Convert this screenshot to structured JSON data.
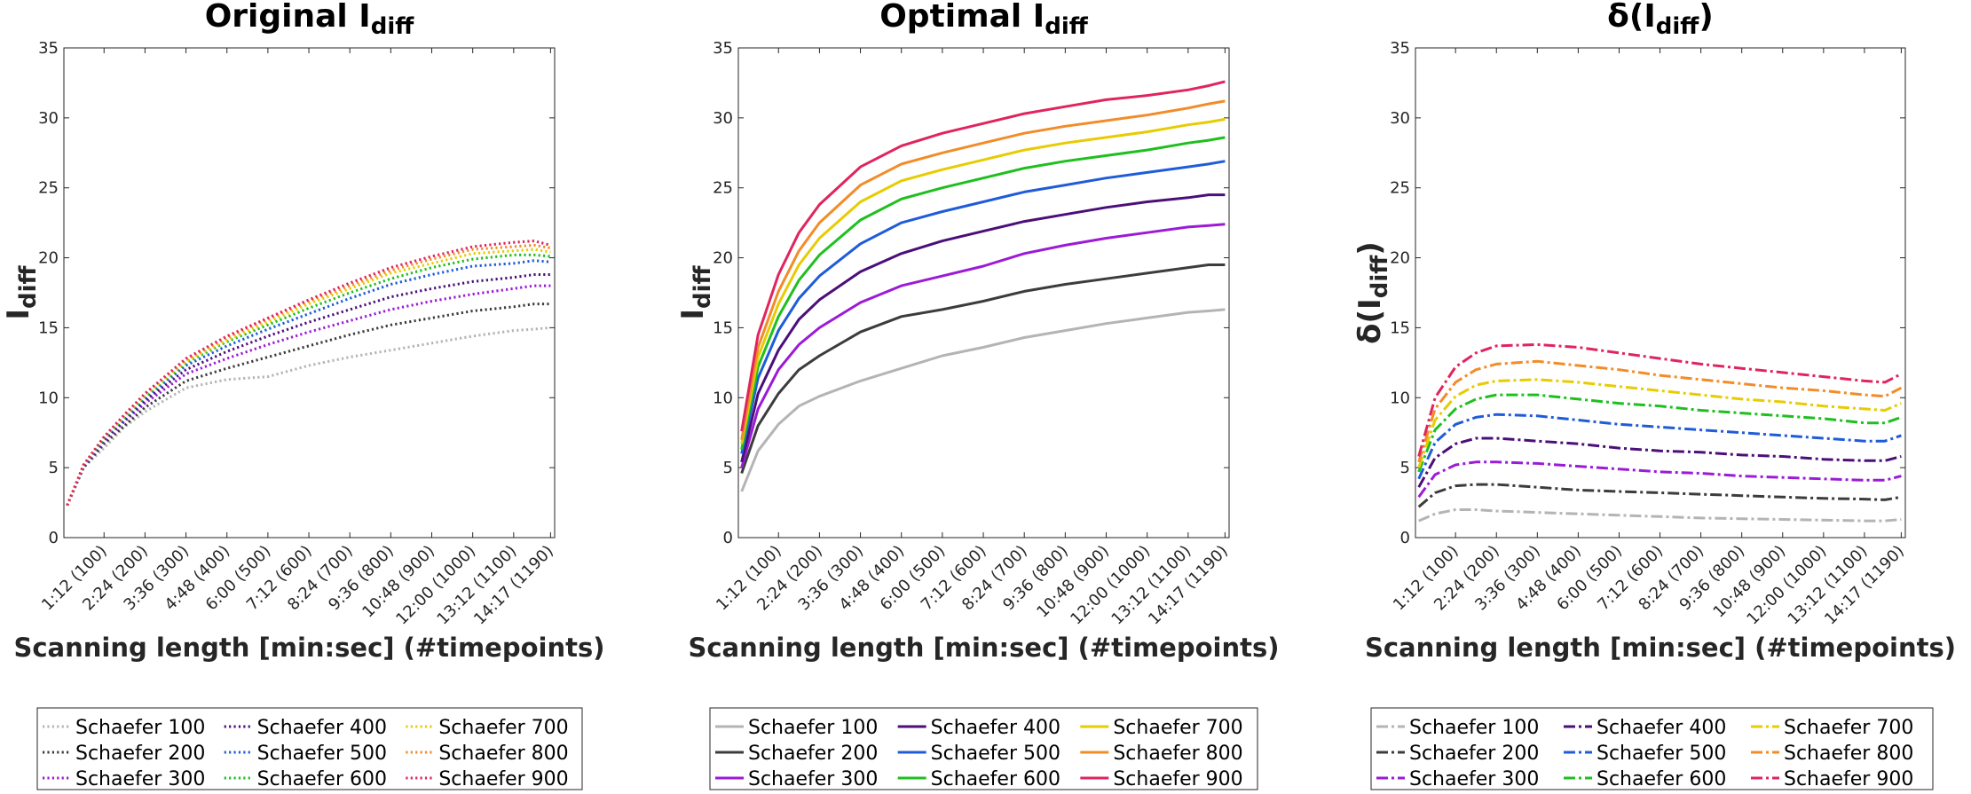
{
  "chart_data": [
    {
      "type": "line",
      "title": "Original I",
      "title_sub": "diff",
      "ylabel": "I",
      "ylabel_sub": "diff",
      "xlabel": "Scanning length [min:sec] (#timepoints)",
      "line_style": "dotted",
      "ylim": [
        0,
        35
      ],
      "yticks": [
        0,
        5,
        10,
        15,
        20,
        25,
        30,
        35
      ],
      "xlim": [
        2,
        1200
      ],
      "xtick_values": [
        100,
        200,
        300,
        400,
        500,
        600,
        700,
        800,
        900,
        1000,
        1100,
        1190
      ],
      "xtick_labels": [
        "1:12 (100)",
        "2:24 (200)",
        "3:36 (300)",
        "4:48 (400)",
        "6:00 (500)",
        "7:12 (600)",
        "8:24 (700)",
        "9:36 (800)",
        "10:48 (900)",
        "12:00 (1000)",
        "13:12 (1100)",
        "14:17 (1190)"
      ],
      "x": [
        10,
        50,
        100,
        150,
        200,
        300,
        400,
        500,
        600,
        700,
        800,
        900,
        1000,
        1100,
        1150,
        1190
      ],
      "series": [
        {
          "name": "Schaefer 100",
          "color": "#b4b4b4",
          "values": [
            2.3,
            5.0,
            6.4,
            7.9,
            9.0,
            10.7,
            11.3,
            11.5,
            12.3,
            12.9,
            13.4,
            13.9,
            14.4,
            14.8,
            14.9,
            15.0
          ]
        },
        {
          "name": "Schaefer 200",
          "color": "#3c3c3c",
          "values": [
            2.3,
            5.0,
            6.7,
            8.0,
            9.3,
            11.2,
            12.1,
            12.9,
            13.7,
            14.5,
            15.2,
            15.7,
            16.2,
            16.5,
            16.7,
            16.7
          ]
        },
        {
          "name": "Schaefer 300",
          "color": "#9b1bd6",
          "values": [
            2.3,
            5.1,
            6.9,
            8.3,
            9.6,
            11.7,
            12.8,
            13.8,
            14.7,
            15.5,
            16.3,
            16.9,
            17.4,
            17.8,
            18.0,
            18.0
          ]
        },
        {
          "name": "Schaefer 400",
          "color": "#4b0f7a",
          "values": [
            2.3,
            5.1,
            7.0,
            8.4,
            9.8,
            12.0,
            13.3,
            14.4,
            15.4,
            16.3,
            17.2,
            17.8,
            18.3,
            18.6,
            18.8,
            18.8
          ]
        },
        {
          "name": "Schaefer 500",
          "color": "#1f5cd9",
          "values": [
            2.3,
            5.1,
            7.1,
            8.5,
            10.0,
            12.3,
            13.7,
            14.9,
            16.0,
            17.1,
            18.1,
            18.8,
            19.4,
            19.6,
            19.8,
            19.7
          ]
        },
        {
          "name": "Schaefer 600",
          "color": "#1fbf1f",
          "values": [
            2.3,
            5.2,
            7.1,
            8.6,
            10.1,
            12.5,
            14.0,
            15.2,
            16.4,
            17.5,
            18.5,
            19.3,
            19.9,
            20.2,
            20.2,
            20.1
          ]
        },
        {
          "name": "Schaefer 700",
          "color": "#e6cc00",
          "values": [
            2.3,
            5.2,
            7.2,
            8.7,
            10.2,
            12.6,
            14.1,
            15.4,
            16.7,
            17.8,
            18.9,
            19.6,
            20.3,
            20.5,
            20.6,
            20.4
          ]
        },
        {
          "name": "Schaefer 800",
          "color": "#f28c28",
          "values": [
            2.3,
            5.2,
            7.2,
            8.7,
            10.3,
            12.7,
            14.3,
            15.6,
            16.9,
            18.0,
            19.1,
            19.9,
            20.6,
            20.8,
            20.9,
            20.7
          ]
        },
        {
          "name": "Schaefer 900",
          "color": "#e0245e",
          "values": [
            2.3,
            5.2,
            7.2,
            8.8,
            10.3,
            12.8,
            14.4,
            15.7,
            17.0,
            18.2,
            19.3,
            20.1,
            20.8,
            21.1,
            21.2,
            20.9
          ]
        }
      ]
    },
    {
      "type": "line",
      "title": "Optimal I",
      "title_sub": "diff",
      "ylabel": "I",
      "ylabel_sub": "diff",
      "xlabel": "Scanning length [min:sec] (#timepoints)",
      "line_style": "solid",
      "ylim": [
        0,
        35
      ],
      "yticks": [
        0,
        5,
        10,
        15,
        20,
        25,
        30,
        35
      ],
      "xlim": [
        2,
        1200
      ],
      "xtick_values": [
        100,
        200,
        300,
        400,
        500,
        600,
        700,
        800,
        900,
        1000,
        1100,
        1190
      ],
      "xtick_labels": [
        "1:12 (100)",
        "2:24 (200)",
        "3:36 (300)",
        "4:48 (400)",
        "6:00 (500)",
        "7:12 (600)",
        "8:24 (700)",
        "9:36 (800)",
        "10:48 (900)",
        "12:00 (1000)",
        "13:12 (1100)",
        "14:17 (1190)"
      ],
      "x": [
        10,
        50,
        100,
        150,
        200,
        300,
        400,
        500,
        600,
        700,
        800,
        900,
        1000,
        1100,
        1150,
        1190
      ],
      "series": [
        {
          "name": "Schaefer 100",
          "color": "#b4b4b4",
          "values": [
            3.3,
            6.2,
            8.1,
            9.4,
            10.1,
            11.2,
            12.1,
            13.0,
            13.6,
            14.3,
            14.8,
            15.3,
            15.7,
            16.1,
            16.2,
            16.3
          ]
        },
        {
          "name": "Schaefer 200",
          "color": "#3c3c3c",
          "values": [
            4.6,
            8.0,
            10.3,
            12.0,
            13.0,
            14.7,
            15.8,
            16.3,
            16.9,
            17.6,
            18.1,
            18.5,
            18.9,
            19.3,
            19.5,
            19.5
          ]
        },
        {
          "name": "Schaefer 300",
          "color": "#9b1bd6",
          "values": [
            5.0,
            9.2,
            12.0,
            13.8,
            15.0,
            16.8,
            18.0,
            18.7,
            19.4,
            20.3,
            20.9,
            21.4,
            21.8,
            22.2,
            22.3,
            22.4
          ]
        },
        {
          "name": "Schaefer 400",
          "color": "#4b0f7a",
          "values": [
            5.4,
            10.3,
            13.4,
            15.6,
            17.0,
            19.0,
            20.3,
            21.2,
            21.9,
            22.6,
            23.1,
            23.6,
            24.0,
            24.3,
            24.5,
            24.5
          ]
        },
        {
          "name": "Schaefer 500",
          "color": "#1f5cd9",
          "values": [
            6.0,
            11.4,
            14.8,
            17.1,
            18.7,
            21.0,
            22.5,
            23.3,
            24.0,
            24.7,
            25.2,
            25.7,
            26.1,
            26.5,
            26.7,
            26.9
          ]
        },
        {
          "name": "Schaefer 600",
          "color": "#1fbf1f",
          "values": [
            6.3,
            12.2,
            15.8,
            18.4,
            20.2,
            22.7,
            24.2,
            25.0,
            25.7,
            26.4,
            26.9,
            27.3,
            27.7,
            28.2,
            28.4,
            28.6
          ]
        },
        {
          "name": "Schaefer 700",
          "color": "#e6cc00",
          "values": [
            6.7,
            12.9,
            16.7,
            19.5,
            21.4,
            24.0,
            25.5,
            26.3,
            27.0,
            27.7,
            28.2,
            28.6,
            29.0,
            29.5,
            29.7,
            29.9
          ]
        },
        {
          "name": "Schaefer 800",
          "color": "#f28c28",
          "values": [
            7.0,
            13.6,
            17.6,
            20.5,
            22.5,
            25.2,
            26.7,
            27.5,
            28.2,
            28.9,
            29.4,
            29.8,
            30.2,
            30.7,
            31.0,
            31.2
          ]
        },
        {
          "name": "Schaefer 900",
          "color": "#e0245e",
          "values": [
            7.6,
            14.5,
            18.8,
            21.8,
            23.8,
            26.5,
            28.0,
            28.9,
            29.6,
            30.3,
            30.8,
            31.3,
            31.6,
            32.0,
            32.3,
            32.6
          ]
        }
      ]
    },
    {
      "type": "line",
      "title": "δ(I",
      "title_sub": "diff",
      "title_suffix": ")",
      "ylabel": "δ(I",
      "ylabel_sub": "diff",
      "ylabel_suffix": ")",
      "xlabel": "Scanning length [min:sec] (#timepoints)",
      "line_style": "dashdot",
      "ylim": [
        0,
        35
      ],
      "yticks": [
        0,
        5,
        10,
        15,
        20,
        25,
        30,
        35
      ],
      "xlim": [
        2,
        1200
      ],
      "xtick_values": [
        100,
        200,
        300,
        400,
        500,
        600,
        700,
        800,
        900,
        1000,
        1100,
        1190
      ],
      "xtick_labels": [
        "1:12 (100)",
        "2:24 (200)",
        "3:36 (300)",
        "4:48 (400)",
        "6:00 (500)",
        "7:12 (600)",
        "8:24 (700)",
        "9:36 (800)",
        "10:48 (900)",
        "12:00 (1000)",
        "13:12 (1100)",
        "14:17 (1190)"
      ],
      "x": [
        10,
        50,
        100,
        150,
        200,
        300,
        400,
        500,
        600,
        700,
        800,
        900,
        1000,
        1100,
        1150,
        1190
      ],
      "series": [
        {
          "name": "Schaefer 100",
          "color": "#b4b4b4",
          "values": [
            1.2,
            1.7,
            2.0,
            2.0,
            1.9,
            1.8,
            1.7,
            1.6,
            1.5,
            1.4,
            1.35,
            1.3,
            1.25,
            1.2,
            1.2,
            1.3
          ]
        },
        {
          "name": "Schaefer 200",
          "color": "#3c3c3c",
          "values": [
            2.2,
            3.2,
            3.7,
            3.8,
            3.8,
            3.6,
            3.4,
            3.3,
            3.2,
            3.1,
            3.0,
            2.9,
            2.8,
            2.75,
            2.7,
            2.9
          ]
        },
        {
          "name": "Schaefer 300",
          "color": "#9b1bd6",
          "values": [
            2.9,
            4.5,
            5.2,
            5.4,
            5.4,
            5.3,
            5.1,
            4.9,
            4.7,
            4.6,
            4.4,
            4.3,
            4.2,
            4.1,
            4.1,
            4.4
          ]
        },
        {
          "name": "Schaefer 400",
          "color": "#4b0f7a",
          "values": [
            3.6,
            5.7,
            6.7,
            7.1,
            7.1,
            6.9,
            6.7,
            6.4,
            6.2,
            6.1,
            5.9,
            5.8,
            5.6,
            5.5,
            5.5,
            5.8
          ]
        },
        {
          "name": "Schaefer 500",
          "color": "#1f5cd9",
          "values": [
            4.2,
            6.8,
            8.1,
            8.6,
            8.8,
            8.7,
            8.4,
            8.1,
            7.9,
            7.7,
            7.5,
            7.3,
            7.1,
            6.9,
            6.9,
            7.3
          ]
        },
        {
          "name": "Schaefer 600",
          "color": "#1fbf1f",
          "values": [
            4.7,
            7.7,
            9.2,
            9.9,
            10.2,
            10.2,
            9.9,
            9.6,
            9.4,
            9.1,
            8.9,
            8.7,
            8.5,
            8.2,
            8.2,
            8.6
          ]
        },
        {
          "name": "Schaefer 700",
          "color": "#e6cc00",
          "values": [
            5.0,
            8.4,
            10.1,
            10.9,
            11.2,
            11.3,
            11.1,
            10.8,
            10.5,
            10.2,
            9.9,
            9.7,
            9.4,
            9.2,
            9.1,
            9.6
          ]
        },
        {
          "name": "Schaefer 800",
          "color": "#f28c28",
          "values": [
            5.4,
            9.2,
            11.1,
            12.0,
            12.4,
            12.6,
            12.3,
            12.0,
            11.6,
            11.3,
            11.0,
            10.7,
            10.5,
            10.2,
            10.1,
            10.7
          ]
        },
        {
          "name": "Schaefer 900",
          "color": "#e0245e",
          "values": [
            5.8,
            10.0,
            12.2,
            13.2,
            13.7,
            13.8,
            13.6,
            13.2,
            12.8,
            12.4,
            12.1,
            11.8,
            11.5,
            11.2,
            11.1,
            11.7
          ]
        }
      ]
    }
  ]
}
